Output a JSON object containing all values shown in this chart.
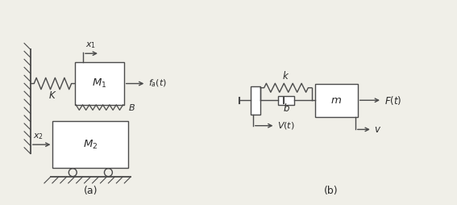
{
  "bg_color": "#f0efe8",
  "line_color": "#4a4a4a",
  "fig_bg": "#f0efe8",
  "text_color": "#2a2a2a",
  "label_a": "(a)",
  "label_b": "(b)"
}
